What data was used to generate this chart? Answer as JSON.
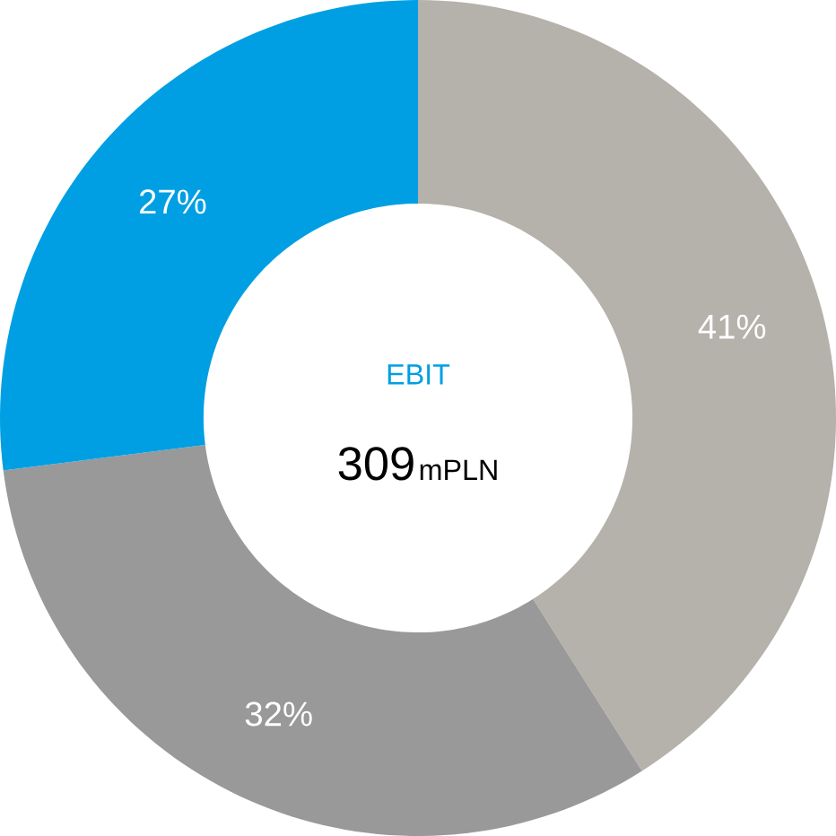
{
  "chart_data": {
    "type": "donut",
    "title": "EBIT",
    "annotations": [
      "309",
      "mPLN"
    ],
    "categories": [
      null,
      null,
      null
    ],
    "values": [
      41,
      32,
      27
    ],
    "value_labels": [
      "41%",
      "32%",
      "27%"
    ],
    "colors": [
      "#b5b1ab",
      "#999999",
      "#009fe3"
    ]
  }
}
